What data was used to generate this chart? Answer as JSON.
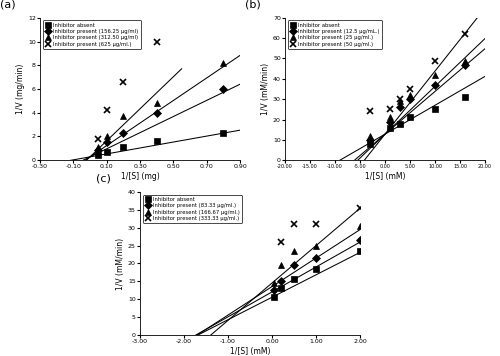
{
  "panel_a": {
    "xlabel": "1/[S] (mg)",
    "ylabel": "1/V (mg/min)",
    "xlim": [
      -0.3,
      0.9
    ],
    "ylim": [
      0,
      12
    ],
    "xticks": [
      -0.3,
      -0.1,
      0.1,
      0.3,
      0.5,
      0.7,
      0.9
    ],
    "ytick_vals": [
      0,
      2,
      4,
      6,
      8,
      10,
      12
    ],
    "legend": [
      "Inhibitor absent",
      "Inhibitor present (156.25 μg/ml)",
      "Inhibitor present (312.50 μg/ml)",
      "Inhibitor present (625 μg/ml.)"
    ],
    "series": [
      {
        "x": [
          0.05,
          0.1,
          0.2,
          0.4,
          0.8
        ],
        "y": [
          0.45,
          0.7,
          1.1,
          1.6,
          2.3
        ],
        "marker": "s"
      },
      {
        "x": [
          0.05,
          0.1,
          0.2,
          0.4,
          0.8
        ],
        "y": [
          0.9,
          1.5,
          2.3,
          4.0,
          6.0
        ],
        "marker": "D"
      },
      {
        "x": [
          0.05,
          0.1,
          0.2,
          0.4,
          0.8
        ],
        "y": [
          1.1,
          2.0,
          3.7,
          4.8,
          8.2
        ],
        "marker": "^"
      },
      {
        "x": [
          0.05,
          0.1,
          0.2,
          0.4
        ],
        "y": [
          1.8,
          4.2,
          6.6,
          10.0
        ],
        "marker": "x"
      }
    ],
    "fit_lines": [
      {
        "x0": -0.3,
        "x1": 0.9,
        "slope": 2.5,
        "intercept": 0.28
      },
      {
        "x0": -0.3,
        "x1": 0.9,
        "slope": 6.8,
        "intercept": 0.28
      },
      {
        "x0": -0.3,
        "x1": 0.9,
        "slope": 9.5,
        "intercept": 0.28
      },
      {
        "x0": -0.3,
        "x1": 0.55,
        "slope": 13.5,
        "intercept": 0.28
      }
    ]
  },
  "panel_b": {
    "xlabel": "1/[S] (mM)",
    "ylabel": "1/V (mM/min)",
    "xlim": [
      -20.0,
      20.0
    ],
    "ylim": [
      0,
      70
    ],
    "xticks": [
      -20.0,
      -15.0,
      -10.0,
      -5.0,
      0.0,
      5.0,
      10.0,
      15.0,
      20.0
    ],
    "ytick_vals": [
      0,
      10,
      20,
      30,
      40,
      50,
      60,
      70
    ],
    "legend": [
      "Inhibitor absent",
      "Inhibitor present (12.5 μg/mL.)",
      "Inhibitor present (25 μg/ml.)",
      "Inhibitor present (50 μg/ml.)"
    ],
    "series": [
      {
        "x": [
          -3.0,
          1.0,
          3.0,
          5.0,
          10.0,
          16.0
        ],
        "y": [
          8.0,
          16.0,
          18.0,
          21.0,
          25.0,
          31.0
        ],
        "marker": "s"
      },
      {
        "x": [
          -3.0,
          1.0,
          3.0,
          5.0,
          10.0,
          16.0
        ],
        "y": [
          10.0,
          19.0,
          26.0,
          30.0,
          37.0,
          47.0
        ],
        "marker": "D"
      },
      {
        "x": [
          -3.0,
          1.0,
          3.0,
          5.0,
          10.0,
          16.0
        ],
        "y": [
          12.0,
          21.0,
          29.0,
          32.0,
          42.0,
          49.0
        ],
        "marker": "^"
      },
      {
        "x": [
          -3.0,
          1.0,
          3.0,
          5.0,
          10.0,
          16.0
        ],
        "y": [
          24.0,
          25.0,
          30.0,
          35.0,
          49.0,
          62.0
        ],
        "marker": "x"
      }
    ],
    "fit_lines": [
      {
        "x0": -20.0,
        "x1": 20.0,
        "slope": 1.42,
        "intercept": 12.8
      },
      {
        "x0": -20.0,
        "x1": 20.0,
        "slope": 2.1,
        "intercept": 12.8
      },
      {
        "x0": -20.0,
        "x1": 20.0,
        "slope": 2.35,
        "intercept": 12.8
      },
      {
        "x0": -20.0,
        "x1": 20.0,
        "slope": 3.1,
        "intercept": 12.8
      }
    ]
  },
  "panel_c": {
    "xlabel": "1/[S] (mM)",
    "ylabel": "1/V (mM/min)",
    "xlim": [
      -3.0,
      2.0
    ],
    "ylim": [
      0,
      40
    ],
    "xticks": [
      -3.0,
      -2.0,
      -1.0,
      0.0,
      1.0,
      2.0
    ],
    "ytick_vals": [
      0,
      5,
      10,
      15,
      20,
      25,
      30,
      35,
      40
    ],
    "legend": [
      "Inhibitor absent",
      "Inhibitor present (83.33 μg/ml.)",
      "Inhibitor present (166.67 μg/ml.)",
      "Inhibitor present (333.33 μg/ml.)"
    ],
    "series": [
      {
        "x": [
          0.05,
          0.2,
          0.5,
          1.0,
          2.0
        ],
        "y": [
          10.5,
          13.0,
          15.5,
          18.5,
          23.5
        ],
        "marker": "s"
      },
      {
        "x": [
          0.05,
          0.2,
          0.5,
          1.0,
          2.0
        ],
        "y": [
          12.5,
          15.0,
          19.5,
          21.5,
          26.5
        ],
        "marker": "D"
      },
      {
        "x": [
          0.05,
          0.2,
          0.5,
          1.0,
          2.0
        ],
        "y": [
          14.5,
          19.5,
          23.5,
          25.0,
          30.5
        ],
        "marker": "^"
      },
      {
        "x": [
          0.2,
          0.5,
          1.0,
          2.0
        ],
        "y": [
          26.0,
          31.0,
          31.0,
          35.5
        ],
        "marker": "x"
      }
    ],
    "fit_lines": [
      {
        "x0": -3.0,
        "x1": 2.0,
        "slope": 6.3,
        "intercept": 10.5
      },
      {
        "x0": -3.0,
        "x1": 2.0,
        "slope": 7.0,
        "intercept": 12.0
      },
      {
        "x0": -3.0,
        "x1": 2.0,
        "slope": 8.0,
        "intercept": 13.5
      },
      {
        "x0": -3.0,
        "x1": 2.0,
        "slope": 10.5,
        "intercept": 14.5
      }
    ]
  }
}
